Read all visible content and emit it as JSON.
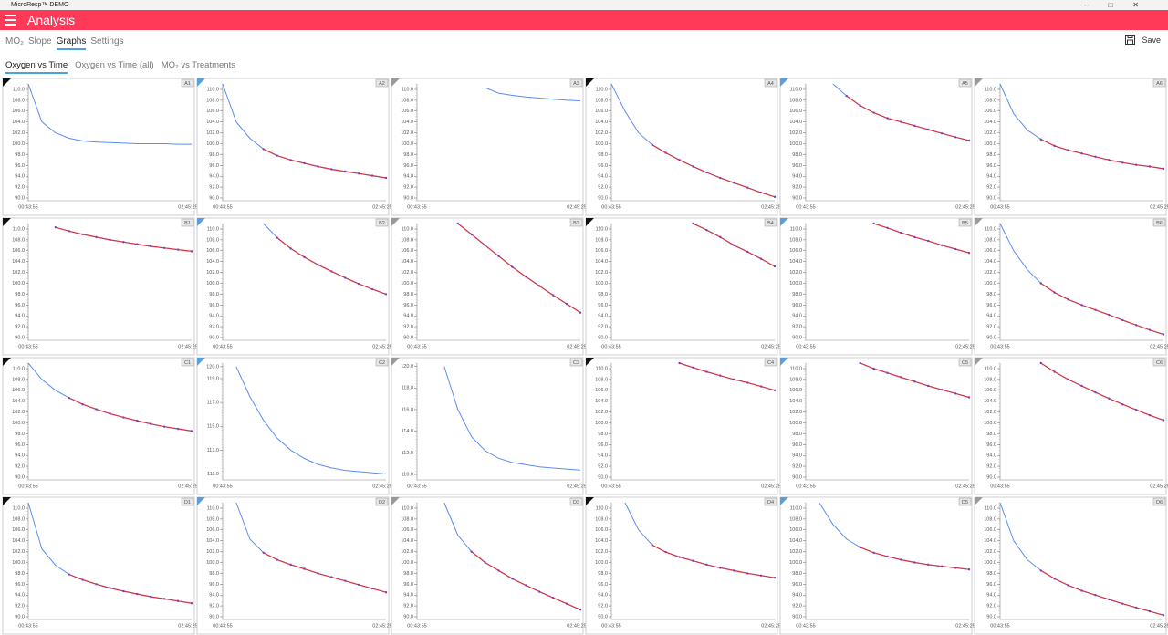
{
  "app": {
    "window_title": "MicroResp™ DEMO",
    "header": "Analysis",
    "tabs": [
      "MO₂",
      "Slope",
      "Graphs",
      "Settings"
    ],
    "save": "Save",
    "subtabs": [
      "Oxygen vs Time",
      "Oxygen vs Time (all)",
      "MO₂ vs Treatments"
    ]
  },
  "axes": {
    "ylim": [
      89.5,
      111
    ],
    "yticks": [
      {
        "value": 90,
        "label": "90.0"
      },
      {
        "value": 92,
        "label": "92.0"
      },
      {
        "value": 94,
        "label": "94.0"
      },
      {
        "value": 96,
        "label": "96.0"
      },
      {
        "value": 98,
        "label": "98.0"
      },
      {
        "value": 100,
        "label": "100.0"
      },
      {
        "value": 102,
        "label": "102.0"
      },
      {
        "value": 104,
        "label": "104.0"
      },
      {
        "value": 106,
        "label": "106.0"
      },
      {
        "value": 108,
        "label": "108.0"
      },
      {
        "value": 110,
        "label": "110.0"
      }
    ],
    "x_labels": [
      "00:43:55",
      "02:45:25"
    ],
    "line_color": "#5b8def",
    "fit_color": "#d8343f",
    "point_color": "#7a3fbf"
  },
  "chart_data": [
    {
      "type": "line",
      "label": "A1",
      "values": [
        111,
        104,
        102,
        101,
        100.5,
        100.3,
        100.2,
        100.1,
        100,
        100,
        100,
        99.9,
        99.9
      ]
    },
    {
      "type": "line",
      "label": "A2",
      "values": [
        111,
        104,
        101,
        99,
        97.8,
        97,
        96.4,
        95.8,
        95.3,
        94.9,
        94.5,
        94.1,
        93.7
      ],
      "fit": [
        null,
        null,
        null,
        99,
        97.8,
        97,
        96.4,
        95.8,
        95.3,
        94.9,
        94.5,
        94.1,
        93.7
      ]
    },
    {
      "type": "line",
      "label": "A3",
      "values": [
        null,
        null,
        null,
        null,
        null,
        110.3,
        109.3,
        108.9,
        108.6,
        108.4,
        108.2,
        108,
        107.9
      ]
    },
    {
      "type": "line",
      "label": "A4",
      "values": [
        111,
        106,
        102,
        99.8,
        98.3,
        97,
        95.8,
        94.7,
        93.7,
        92.8,
        91.9,
        91,
        90.2
      ],
      "fit": [
        null,
        null,
        null,
        99.8,
        98.3,
        97,
        95.8,
        94.7,
        93.7,
        92.8,
        91.9,
        91,
        90.2
      ]
    },
    {
      "type": "line",
      "label": "A5",
      "values": [
        null,
        null,
        111,
        108.8,
        107,
        105.7,
        104.7,
        104,
        103.3,
        102.6,
        101.9,
        101.2,
        100.6
      ],
      "fit": [
        null,
        null,
        null,
        108.8,
        107,
        105.7,
        104.7,
        104,
        103.3,
        102.6,
        101.9,
        101.2,
        100.6
      ]
    },
    {
      "type": "line",
      "label": "A6",
      "values": [
        111,
        105.5,
        102.5,
        100.8,
        99.6,
        98.8,
        98.2,
        97.6,
        97,
        96.5,
        96.1,
        95.8,
        95.4
      ],
      "fit": [
        null,
        null,
        null,
        100.8,
        99.6,
        98.8,
        98.2,
        97.6,
        97,
        96.5,
        96.1,
        95.8,
        95.4
      ]
    },
    {
      "type": "line",
      "label": "B1",
      "values": [
        null,
        null,
        110.3,
        109.6,
        109,
        108.5,
        108,
        107.6,
        107.2,
        106.8,
        106.5,
        106.2,
        105.9
      ],
      "fit": [
        null,
        null,
        110.3,
        109.6,
        109,
        108.5,
        108,
        107.6,
        107.2,
        106.8,
        106.5,
        106.2,
        105.9
      ]
    },
    {
      "type": "line",
      "label": "B2",
      "values": [
        null,
        null,
        null,
        111,
        108.4,
        106.4,
        104.8,
        103.4,
        102.2,
        101,
        99.9,
        98.9,
        98
      ],
      "fit": [
        null,
        null,
        null,
        null,
        108.4,
        106.4,
        104.8,
        103.4,
        102.2,
        101,
        99.9,
        98.9,
        98
      ]
    },
    {
      "type": "line",
      "label": "B3",
      "values": [
        null,
        null,
        null,
        111,
        109,
        107,
        105,
        103,
        101.2,
        99.5,
        97.8,
        96.2,
        94.6
      ],
      "fit": [
        null,
        null,
        null,
        111,
        109,
        107,
        105,
        103,
        101.2,
        99.5,
        97.8,
        96.2,
        94.6
      ]
    },
    {
      "type": "line",
      "label": "B4",
      "values": [
        null,
        null,
        null,
        null,
        null,
        null,
        111,
        109.8,
        108.5,
        107,
        105.8,
        104.5,
        103.1
      ],
      "fit": [
        null,
        null,
        null,
        null,
        null,
        null,
        111,
        109.8,
        108.5,
        107,
        105.8,
        104.5,
        103.1
      ]
    },
    {
      "type": "line",
      "label": "B5",
      "values": [
        null,
        null,
        null,
        null,
        null,
        111,
        110.2,
        109.3,
        108.5,
        107.8,
        107,
        106.3,
        105.6
      ],
      "fit": [
        null,
        null,
        null,
        null,
        null,
        111,
        110.2,
        109.3,
        108.5,
        107.8,
        107,
        106.3,
        105.6
      ]
    },
    {
      "type": "line",
      "label": "B6",
      "values": [
        111,
        106,
        102.5,
        100,
        98.3,
        97,
        96,
        95.1,
        94.2,
        93.2,
        92.3,
        91.4,
        90.6
      ],
      "fit": [
        null,
        null,
        null,
        100,
        98.3,
        97,
        96,
        95.1,
        94.2,
        93.2,
        92.3,
        91.4,
        90.6
      ]
    },
    {
      "type": "line",
      "label": "C1",
      "values": [
        111,
        108,
        106,
        104.6,
        103.4,
        102.5,
        101.7,
        101,
        100.4,
        99.8,
        99.3,
        98.9,
        98.5
      ],
      "fit": [
        null,
        null,
        null,
        104.6,
        103.4,
        102.5,
        101.7,
        101,
        100.4,
        99.8,
        99.3,
        98.9,
        98.5
      ]
    },
    {
      "type": "line",
      "label": "C2",
      "ylim": [
        110.5,
        120.3
      ],
      "yticks": [
        {
          "value": 111,
          "label": "111.0"
        },
        {
          "value": 113,
          "label": "113.0"
        },
        {
          "value": 115,
          "label": "115.0"
        },
        {
          "value": 117,
          "label": "117.0"
        },
        {
          "value": 119,
          "label": "119.0"
        },
        {
          "value": 120,
          "label": "120.0"
        }
      ],
      "values": [
        null,
        120,
        117.5,
        115.5,
        114,
        113,
        112.3,
        111.8,
        111.5,
        111.3,
        111.2,
        111.1,
        111
      ]
    },
    {
      "type": "line",
      "label": "C3",
      "ylim": [
        109.5,
        120.3
      ],
      "yticks": [
        {
          "value": 110,
          "label": "110.0"
        },
        {
          "value": 112,
          "label": "112.0"
        },
        {
          "value": 114,
          "label": "114.0"
        },
        {
          "value": 116,
          "label": "116.0"
        },
        {
          "value": 118,
          "label": "118.0"
        },
        {
          "value": 120,
          "label": "120.0"
        }
      ],
      "values": [
        null,
        null,
        120,
        116,
        113.5,
        112.2,
        111.5,
        111.1,
        110.9,
        110.7,
        110.6,
        110.5,
        110.4
      ]
    },
    {
      "type": "line",
      "label": "C4",
      "values": [
        null,
        null,
        null,
        null,
        null,
        111,
        110.2,
        109.4,
        108.7,
        108,
        107.4,
        106.7,
        106
      ],
      "fit": [
        null,
        null,
        null,
        null,
        null,
        111,
        110.2,
        109.4,
        108.7,
        108,
        107.4,
        106.7,
        106
      ]
    },
    {
      "type": "line",
      "label": "C5",
      "values": [
        null,
        null,
        null,
        null,
        111,
        110,
        109.2,
        108.4,
        107.6,
        106.8,
        106.1,
        105.4,
        104.7
      ],
      "fit": [
        null,
        null,
        null,
        null,
        111,
        110,
        109.2,
        108.4,
        107.6,
        106.8,
        106.1,
        105.4,
        104.7
      ]
    },
    {
      "type": "line",
      "label": "C6",
      "values": [
        null,
        null,
        null,
        111,
        109.4,
        108,
        106.8,
        105.6,
        104.5,
        103.4,
        102.4,
        101.4,
        100.5
      ],
      "fit": [
        null,
        null,
        null,
        111,
        109.4,
        108,
        106.8,
        105.6,
        104.5,
        103.4,
        102.4,
        101.4,
        100.5
      ]
    },
    {
      "type": "line",
      "label": "D1",
      "values": [
        111,
        102.5,
        99.5,
        97.8,
        96.8,
        96,
        95.3,
        94.7,
        94.2,
        93.7,
        93.3,
        92.9,
        92.5
      ],
      "fit": [
        null,
        null,
        null,
        97.8,
        96.8,
        96,
        95.3,
        94.7,
        94.2,
        93.7,
        93.3,
        92.9,
        92.5
      ]
    },
    {
      "type": "line",
      "label": "D2",
      "values": [
        null,
        111,
        104.3,
        101.8,
        100.5,
        99.6,
        98.8,
        98,
        97.3,
        96.6,
        95.9,
        95.2,
        94.5
      ],
      "fit": [
        null,
        null,
        null,
        101.8,
        100.5,
        99.6,
        98.8,
        98,
        97.3,
        96.6,
        95.9,
        95.2,
        94.5
      ]
    },
    {
      "type": "line",
      "label": "D3",
      "values": [
        null,
        null,
        111,
        105,
        102,
        100,
        98.5,
        97,
        95.8,
        94.6,
        93.5,
        92.4,
        91.3
      ],
      "fit": [
        null,
        null,
        null,
        null,
        102,
        100,
        98.5,
        97,
        95.8,
        94.6,
        93.5,
        92.4,
        91.3
      ]
    },
    {
      "type": "line",
      "label": "D4",
      "values": [
        null,
        111,
        106,
        103.2,
        101.9,
        101,
        100.3,
        99.6,
        99,
        98.5,
        98,
        97.6,
        97.2
      ],
      "fit": [
        null,
        null,
        null,
        103.2,
        101.9,
        101,
        100.3,
        99.6,
        99,
        98.5,
        98,
        97.6,
        97.2
      ]
    },
    {
      "type": "line",
      "label": "D5",
      "values": [
        null,
        111,
        107,
        104.3,
        102.8,
        101.8,
        101.1,
        100.5,
        100,
        99.6,
        99.3,
        99,
        98.7
      ],
      "fit": [
        null,
        null,
        null,
        null,
        102.8,
        101.8,
        101.1,
        100.5,
        100,
        99.6,
        99.3,
        99,
        98.7
      ]
    },
    {
      "type": "line",
      "label": "D6",
      "values": [
        111,
        104,
        100.5,
        98.5,
        97,
        95.8,
        94.8,
        94,
        93.2,
        92.4,
        91.7,
        91,
        90.3
      ],
      "fit": [
        null,
        null,
        null,
        98.5,
        97,
        95.8,
        94.8,
        94,
        93.2,
        92.4,
        91.7,
        91,
        90.3
      ]
    }
  ]
}
